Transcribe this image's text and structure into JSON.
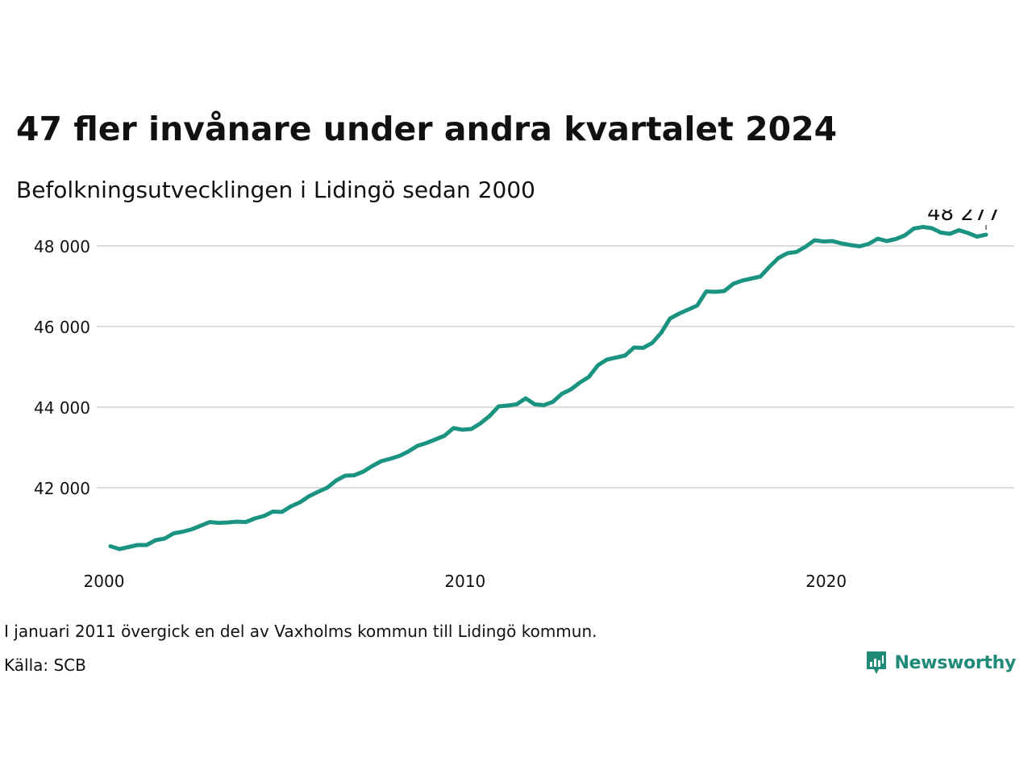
{
  "title": "47 fler invånare under andra kvartalet 2024",
  "subtitle": "Befolkningsutvecklingen i Lidingö sedan 2000",
  "note": "I januari 2011 övergick en del av Vaxholms kommun till Lidingö kommun.",
  "source": "Källa: SCB",
  "brand": {
    "name": "Newsworthy",
    "color": "#1f8a78"
  },
  "chart_data": {
    "type": "line",
    "title": "47 fler invånare under andra kvartalet 2024",
    "xlabel": "",
    "ylabel": "",
    "x_ticks": [
      {
        "value": 2000,
        "label": "2000"
      },
      {
        "value": 2010,
        "label": "2010"
      },
      {
        "value": 2020,
        "label": "2020"
      }
    ],
    "y_ticks": [
      {
        "value": 42000,
        "label": "42 000"
      },
      {
        "value": 44000,
        "label": "44 000"
      },
      {
        "value": 46000,
        "label": "46 000"
      },
      {
        "value": 48000,
        "label": "48 000"
      }
    ],
    "xlim": [
      2000,
      2024.25
    ],
    "ylim": [
      40100,
      48900
    ],
    "grid": "horizontal",
    "line_color": "#1a9480",
    "end_label": "48 277",
    "series": [
      {
        "x": [
          2000.0,
          2000.25,
          2000.5,
          2000.75,
          2001.0,
          2001.25,
          2001.5,
          2001.75,
          2002.0,
          2002.25,
          2002.5,
          2002.75,
          2003.0,
          2003.25,
          2003.5,
          2003.75,
          2004.0,
          2004.25,
          2004.5,
          2004.75,
          2005.0,
          2005.25,
          2005.5,
          2005.75,
          2006.0,
          2006.25,
          2006.5,
          2006.75,
          2007.0,
          2007.25,
          2007.5,
          2007.75,
          2008.0,
          2008.25,
          2008.5,
          2008.75,
          2009.0,
          2009.25,
          2009.5,
          2009.75,
          2010.0,
          2010.25,
          2010.5,
          2010.75,
          2011.0,
          2011.25,
          2011.5,
          2011.75,
          2012.0,
          2012.25,
          2012.5,
          2012.75,
          2013.0,
          2013.25,
          2013.5,
          2013.75,
          2014.0,
          2014.25,
          2014.5,
          2014.75,
          2015.0,
          2015.25,
          2015.5,
          2015.75,
          2016.0,
          2016.25,
          2016.5,
          2016.75,
          2017.0,
          2017.25,
          2017.5,
          2017.75,
          2018.0,
          2018.25,
          2018.5,
          2018.75,
          2019.0,
          2019.25,
          2019.5,
          2019.75,
          2020.0,
          2020.25,
          2020.5,
          2020.75,
          2021.0,
          2021.25,
          2021.5,
          2021.75,
          2022.0,
          2022.25,
          2022.5,
          2022.75,
          2023.0,
          2023.25,
          2023.5,
          2023.75,
          2024.0,
          2024.25
        ],
        "values": [
          40550,
          40480,
          40530,
          40580,
          40580,
          40700,
          40740,
          40870,
          40910,
          40970,
          41060,
          41150,
          41130,
          41140,
          41160,
          41150,
          41240,
          41300,
          41410,
          41400,
          41540,
          41640,
          41790,
          41900,
          42000,
          42180,
          42300,
          42310,
          42400,
          42540,
          42660,
          42720,
          42790,
          42900,
          43040,
          43110,
          43200,
          43290,
          43480,
          43440,
          43460,
          43600,
          43780,
          44020,
          44040,
          44070,
          44220,
          44070,
          44050,
          44130,
          44330,
          44440,
          44610,
          44750,
          45040,
          45180,
          45230,
          45280,
          45480,
          45470,
          45590,
          45840,
          46200,
          46320,
          46420,
          46520,
          46870,
          46860,
          46880,
          47060,
          47140,
          47190,
          47240,
          47480,
          47700,
          47820,
          47850,
          47980,
          48140,
          48110,
          48120,
          48060,
          48020,
          47990,
          48050,
          48180,
          48120,
          48170,
          48260,
          48430,
          48470,
          48440,
          48330,
          48300,
          48390,
          48320,
          48230,
          48277
        ]
      }
    ]
  }
}
